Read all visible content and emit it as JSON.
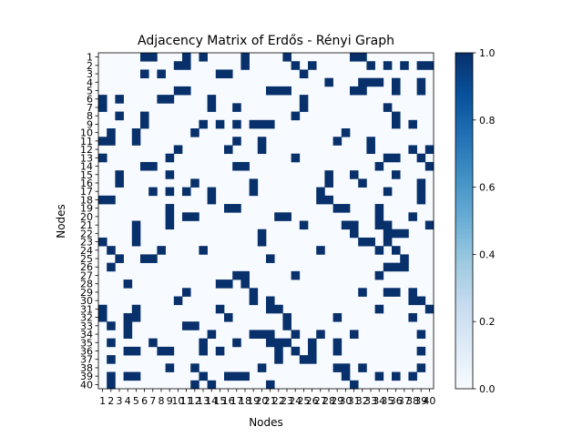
{
  "chart_data": {
    "type": "heatmap",
    "title": "Adjacency Matrix of Erdős - Rényi Graph",
    "xlabel": "Nodes",
    "ylabel": "Nodes",
    "x_tick_labels": [
      "1",
      "2",
      "3",
      "4",
      "5",
      "6",
      "7",
      "8",
      "9",
      "10",
      "11",
      "12",
      "13",
      "14",
      "15",
      "16",
      "17",
      "18",
      "19",
      "20",
      "21",
      "22",
      "23",
      "24",
      "25",
      "26",
      "27",
      "28",
      "29",
      "30",
      "31",
      "32",
      "33",
      "34",
      "35",
      "36",
      "37",
      "38",
      "39",
      "40"
    ],
    "y_tick_labels": [
      "1",
      "2",
      "3",
      "4",
      "5",
      "6",
      "7",
      "8",
      "9",
      "10",
      "11",
      "12",
      "13",
      "14",
      "15",
      "16",
      "17",
      "18",
      "19",
      "20",
      "21",
      "22",
      "23",
      "24",
      "25",
      "26",
      "27",
      "28",
      "29",
      "30",
      "31",
      "32",
      "33",
      "34",
      "35",
      "36",
      "37",
      "38",
      "39",
      "40"
    ],
    "colormap": "Blues",
    "color_low": "#f7fbff",
    "color_high": "#08306b",
    "vmin": 0.0,
    "vmax": 1.0,
    "colorbar_ticks": [
      "0.0",
      "0.2",
      "0.4",
      "0.6",
      "0.8",
      "1.0"
    ],
    "edges": [
      [
        1,
        6
      ],
      [
        1,
        7
      ],
      [
        1,
        11
      ],
      [
        1,
        13
      ],
      [
        1,
        18
      ],
      [
        1,
        23
      ],
      [
        1,
        31
      ],
      [
        1,
        32
      ],
      [
        2,
        10
      ],
      [
        2,
        11
      ],
      [
        2,
        18
      ],
      [
        2,
        24
      ],
      [
        2,
        26
      ],
      [
        2,
        33
      ],
      [
        2,
        35
      ],
      [
        2,
        37
      ],
      [
        2,
        39
      ],
      [
        2,
        40
      ],
      [
        3,
        6
      ],
      [
        3,
        8
      ],
      [
        3,
        15
      ],
      [
        3,
        16
      ],
      [
        3,
        25
      ],
      [
        4,
        28
      ],
      [
        4,
        32
      ],
      [
        4,
        33
      ],
      [
        4,
        34
      ],
      [
        4,
        36
      ],
      [
        4,
        39
      ],
      [
        5,
        10
      ],
      [
        5,
        11
      ],
      [
        5,
        21
      ],
      [
        5,
        22
      ],
      [
        5,
        23
      ],
      [
        5,
        31
      ],
      [
        5,
        32
      ],
      [
        5,
        36
      ],
      [
        5,
        39
      ],
      [
        6,
        8
      ],
      [
        6,
        9
      ],
      [
        6,
        14
      ],
      [
        6,
        25
      ],
      [
        7,
        14
      ],
      [
        7,
        17
      ],
      [
        7,
        25
      ],
      [
        7,
        35
      ],
      [
        8,
        24
      ],
      [
        8,
        36
      ],
      [
        9,
        13
      ],
      [
        9,
        15
      ],
      [
        9,
        17
      ],
      [
        9,
        19
      ],
      [
        9,
        20
      ],
      [
        9,
        21
      ],
      [
        9,
        36
      ],
      [
        9,
        38
      ],
      [
        10,
        12
      ],
      [
        10,
        30
      ],
      [
        11,
        17
      ],
      [
        11,
        20
      ],
      [
        11,
        29
      ],
      [
        11,
        33
      ],
      [
        12,
        16
      ],
      [
        12,
        20
      ],
      [
        12,
        33
      ],
      [
        12,
        38
      ],
      [
        12,
        40
      ],
      [
        13,
        24
      ],
      [
        13,
        35
      ],
      [
        13,
        36
      ],
      [
        13,
        39
      ],
      [
        14,
        17
      ],
      [
        14,
        18
      ],
      [
        14,
        34
      ],
      [
        14,
        40
      ],
      [
        15,
        28
      ],
      [
        15,
        31
      ],
      [
        15,
        36
      ],
      [
        16,
        19
      ],
      [
        16,
        28
      ],
      [
        16,
        32
      ],
      [
        16,
        39
      ],
      [
        17,
        19
      ],
      [
        17,
        27
      ],
      [
        17,
        35
      ],
      [
        17,
        39
      ],
      [
        18,
        27
      ],
      [
        18,
        28
      ],
      [
        18,
        39
      ],
      [
        19,
        29
      ],
      [
        19,
        30
      ],
      [
        19,
        34
      ],
      [
        20,
        22
      ],
      [
        20,
        23
      ],
      [
        20,
        34
      ],
      [
        20,
        38
      ],
      [
        21,
        25
      ],
      [
        21,
        30
      ],
      [
        21,
        31
      ],
      [
        21,
        34
      ],
      [
        21,
        35
      ],
      [
        21,
        40
      ],
      [
        22,
        31
      ],
      [
        22,
        35
      ],
      [
        22,
        36
      ],
      [
        22,
        37
      ],
      [
        23,
        32
      ],
      [
        23,
        33
      ],
      [
        23,
        35
      ],
      [
        24,
        27
      ],
      [
        24,
        34
      ],
      [
        24,
        36
      ],
      [
        25,
        37
      ],
      [
        26,
        35
      ],
      [
        26,
        36
      ],
      [
        26,
        37
      ],
      [
        27,
        34
      ],
      [
        29,
        32
      ],
      [
        29,
        35
      ],
      [
        29,
        36
      ],
      [
        29,
        38
      ],
      [
        30,
        38
      ],
      [
        30,
        39
      ],
      [
        31,
        34
      ],
      [
        31,
        40
      ],
      [
        32,
        38
      ],
      [
        34,
        39
      ],
      [
        36,
        39
      ],
      [
        38,
        39
      ]
    ]
  }
}
